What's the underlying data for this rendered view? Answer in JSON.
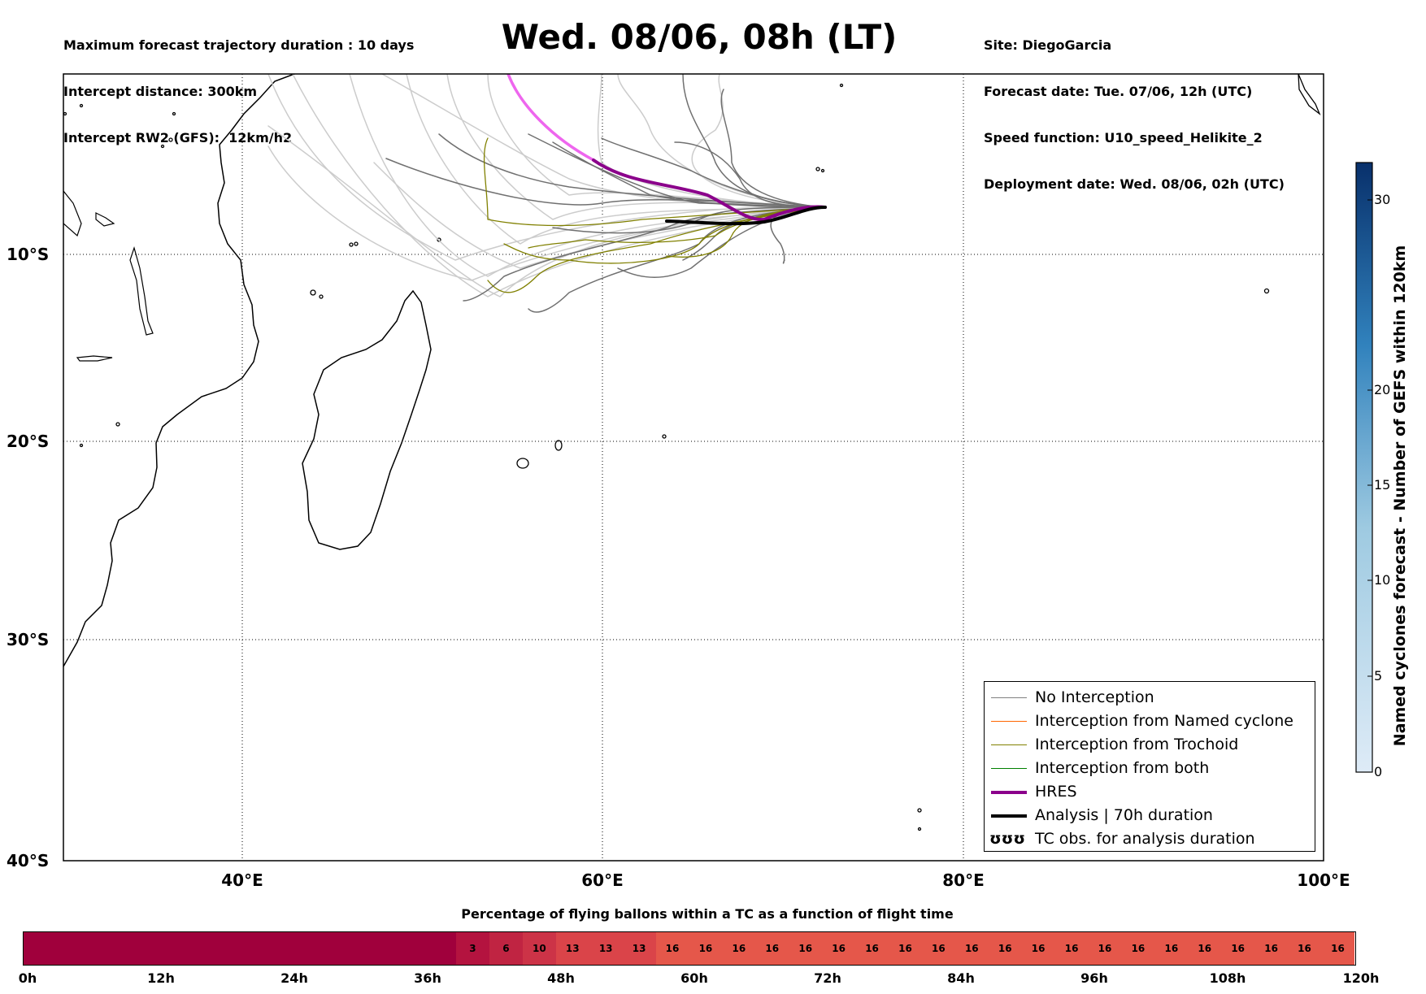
{
  "header": {
    "left_lines": [
      "Maximum forecast trajectory duration : 10 days",
      "Intercept distance: 300km",
      "Intercept RW2 (GFS):  12km/h2"
    ],
    "right_lines": [
      "Site: DiegoGarcia",
      "Forecast date: Tue. 07/06, 12h (UTC)",
      "Speed function: U10_speed_Helikite_2",
      "Deployment date: Wed. 08/06, 02h (UTC)"
    ],
    "title": "Wed. 08/06, 08h (LT)"
  },
  "map": {
    "lat_labels": [
      "10°S",
      "20°S",
      "30°S",
      "40°S"
    ],
    "lon_labels": [
      "40°E",
      "60°E",
      "80°E",
      "100°E"
    ],
    "gridline_style": "dotted"
  },
  "legend": {
    "items": [
      {
        "label": "No Interception",
        "color": "#808080",
        "width": 1
      },
      {
        "label": "Interception from Named cyclone",
        "color": "#ff6600",
        "width": 1
      },
      {
        "label": "Interception from Trochoid",
        "color": "#808000",
        "width": 1
      },
      {
        "label": "Interception from both",
        "color": "#008000",
        "width": 1
      },
      {
        "label": "HRES",
        "color": "#8b008b",
        "width": 4
      },
      {
        "label": "Analysis | 70h duration",
        "color": "#000000",
        "width": 4
      },
      {
        "label": "TC obs. for analysis duration",
        "symbol": "ʊʊʊ"
      }
    ]
  },
  "colorbar": {
    "title": "Named cyclones forecast - Number of GEFS within 120km",
    "ticks": [
      "0",
      "5",
      "10",
      "15",
      "20",
      "30"
    ],
    "color_low": "#deebf7",
    "color_high": "#08306b"
  },
  "timebar": {
    "title": "Percentage of flying ballons within a TC as a function of flight time",
    "segments": [
      {
        "value": "",
        "color": "#a0003c"
      },
      {
        "value": "3",
        "color": "#b4133f"
      },
      {
        "value": "6",
        "color": "#c02442"
      },
      {
        "value": "10",
        "color": "#cc3347"
      },
      {
        "value": "13",
        "color": "#da4449"
      },
      {
        "value": "13",
        "color": "#da4449"
      },
      {
        "value": "13",
        "color": "#da4449"
      },
      {
        "value": "16",
        "color": "#e5574a"
      }
    ],
    "tick_labels": [
      "0h",
      "12h",
      "24h",
      "36h",
      "48h",
      "60h",
      "72h",
      "84h",
      "96h",
      "108h",
      "120h"
    ]
  }
}
